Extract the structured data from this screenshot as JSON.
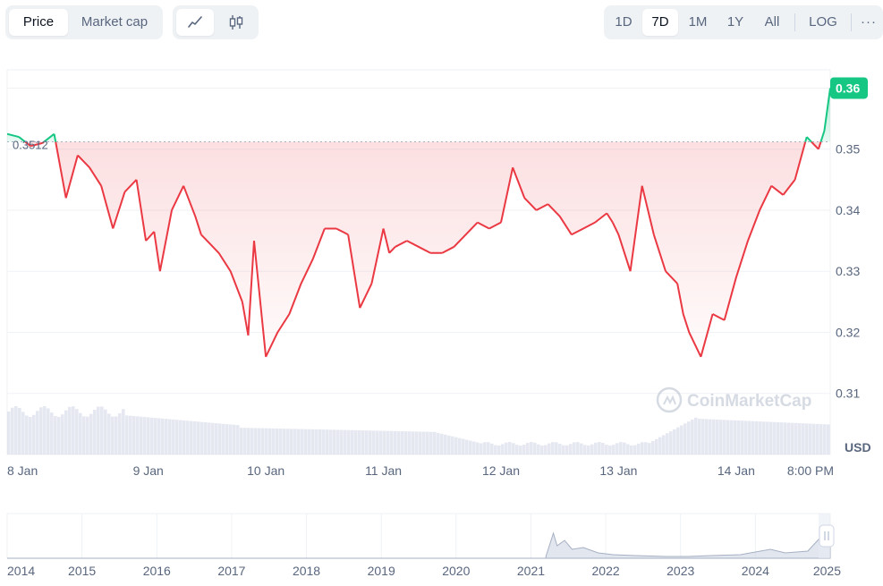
{
  "toolbar": {
    "metric_tabs": [
      "Price",
      "Market cap"
    ],
    "active_metric": "Price",
    "chart_style_icons": [
      "line-chart-icon",
      "candlestick-icon"
    ],
    "ranges": [
      "1D",
      "7D",
      "1M",
      "1Y",
      "All"
    ],
    "active_range": "7D",
    "log_label": "LOG",
    "more_label": "···"
  },
  "watermark": "CoinMarketCap",
  "colors": {
    "up": "#16c784",
    "down": "#ea3943",
    "accent_badge": "#16c784",
    "grid": "#eff2f5"
  },
  "chart_data": {
    "type": "area",
    "currency_label": "USD",
    "reference_value": 0.3512,
    "reference_label": "0.3512",
    "current_value_label": "0.36",
    "ylim": [
      0.3,
      0.363
    ],
    "y_ticks": [
      0.31,
      0.32,
      0.33,
      0.34,
      0.35,
      0.36
    ],
    "y_tick_labels": [
      "0.31",
      "0.32",
      "0.33",
      "0.34",
      "0.35",
      "0.36"
    ],
    "x_tick_labels": [
      "8 Jan",
      "9 Jan",
      "10 Jan",
      "11 Jan",
      "12 Jan",
      "13 Jan",
      "14 Jan",
      "8:00 PM"
    ],
    "x_tick_positions": [
      0.2,
      1.2,
      2.2,
      3.2,
      4.2,
      5.2,
      6.2,
      6.95
    ],
    "series": [
      {
        "x": [
          0,
          0.1,
          0.2,
          0.3,
          0.4,
          0.5,
          0.6,
          0.7,
          0.8,
          0.9,
          1.0,
          1.1,
          1.18,
          1.25,
          1.3,
          1.4,
          1.5,
          1.6,
          1.65,
          1.7,
          1.8,
          1.9,
          2.0,
          2.05,
          2.1,
          2.2,
          2.3,
          2.4,
          2.5,
          2.6,
          2.7,
          2.8,
          2.9,
          3.0,
          3.1,
          3.2,
          3.25,
          3.3,
          3.4,
          3.5,
          3.6,
          3.7,
          3.8,
          3.9,
          4.0,
          4.1,
          4.2,
          4.3,
          4.4,
          4.5,
          4.6,
          4.7,
          4.8,
          4.9,
          5.0,
          5.1,
          5.15,
          5.2,
          5.3,
          5.4,
          5.5,
          5.6,
          5.7,
          5.75,
          5.8,
          5.9,
          6.0,
          6.1,
          6.2,
          6.3,
          6.4,
          6.5,
          6.6,
          6.7,
          6.8,
          6.9,
          6.95,
          7.0
        ],
        "y": [
          0.3525,
          0.352,
          0.3505,
          0.351,
          0.3525,
          0.342,
          0.349,
          0.347,
          0.344,
          0.337,
          0.343,
          0.345,
          0.335,
          0.3365,
          0.33,
          0.34,
          0.344,
          0.339,
          0.336,
          0.335,
          0.333,
          0.33,
          0.325,
          0.3195,
          0.335,
          0.316,
          0.32,
          0.323,
          0.328,
          0.332,
          0.337,
          0.337,
          0.336,
          0.324,
          0.328,
          0.337,
          0.333,
          0.334,
          0.335,
          0.334,
          0.333,
          0.333,
          0.334,
          0.336,
          0.338,
          0.337,
          0.338,
          0.347,
          0.342,
          0.34,
          0.341,
          0.339,
          0.336,
          0.337,
          0.338,
          0.3395,
          0.338,
          0.336,
          0.33,
          0.344,
          0.336,
          0.33,
          0.328,
          0.323,
          0.32,
          0.316,
          0.323,
          0.322,
          0.329,
          0.335,
          0.34,
          0.344,
          0.3425,
          0.345,
          0.352,
          0.35,
          0.353,
          0.36
        ]
      }
    ]
  },
  "navigator": {
    "year_labels": [
      "2014",
      "2015",
      "2016",
      "2017",
      "2018",
      "2019",
      "2020",
      "2021",
      "2022",
      "2023",
      "2024",
      "2025"
    ]
  }
}
